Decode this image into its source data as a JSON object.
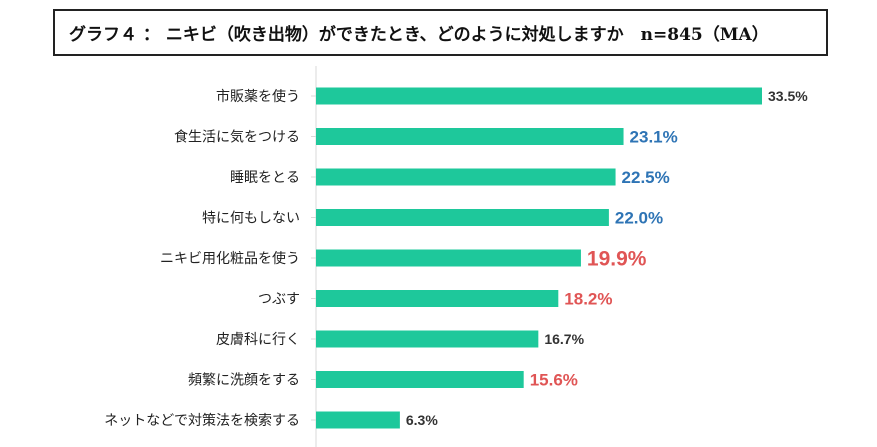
{
  "title": "グラフ４ ： ニキビ（吹き出物）ができたとき、どのように対処しますか　n=845（MA）",
  "chart_data": {
    "type": "bar",
    "orientation": "horizontal",
    "title": "グラフ４ ： ニキビ（吹き出物）ができたとき、どのように対処しますか　n=845（MA）",
    "xlabel": "",
    "ylabel": "",
    "xlim": [
      0,
      33.5
    ],
    "grid": false,
    "legend": "none",
    "bar_color": "#1ec89b",
    "categories": [
      "市販薬を使う",
      "食生活に気をつける",
      "睡眠をとる",
      "特に何もしない",
      "ニキビ用化粧品を使う",
      "つぶす",
      "皮膚科に行く",
      "頻繁に洗顔をする",
      "ネットなどで対策法を検索する"
    ],
    "values": [
      33.5,
      23.1,
      22.5,
      22.0,
      19.9,
      18.2,
      16.7,
      15.6,
      6.3
    ],
    "value_labels": [
      "33.5%",
      "23.1%",
      "22.5%",
      "22.0%",
      "19.9%",
      "18.2%",
      "16.7%",
      "15.6%",
      "6.3%"
    ],
    "label_colors": [
      "#333333",
      "#2e74b5",
      "#2e74b5",
      "#2e74b5",
      "#e05555",
      "#e05555",
      "#333333",
      "#e05555",
      "#333333"
    ],
    "label_emphasis": [
      "normal",
      "medium",
      "medium",
      "medium",
      "large",
      "medium",
      "normal",
      "medium",
      "normal"
    ]
  }
}
